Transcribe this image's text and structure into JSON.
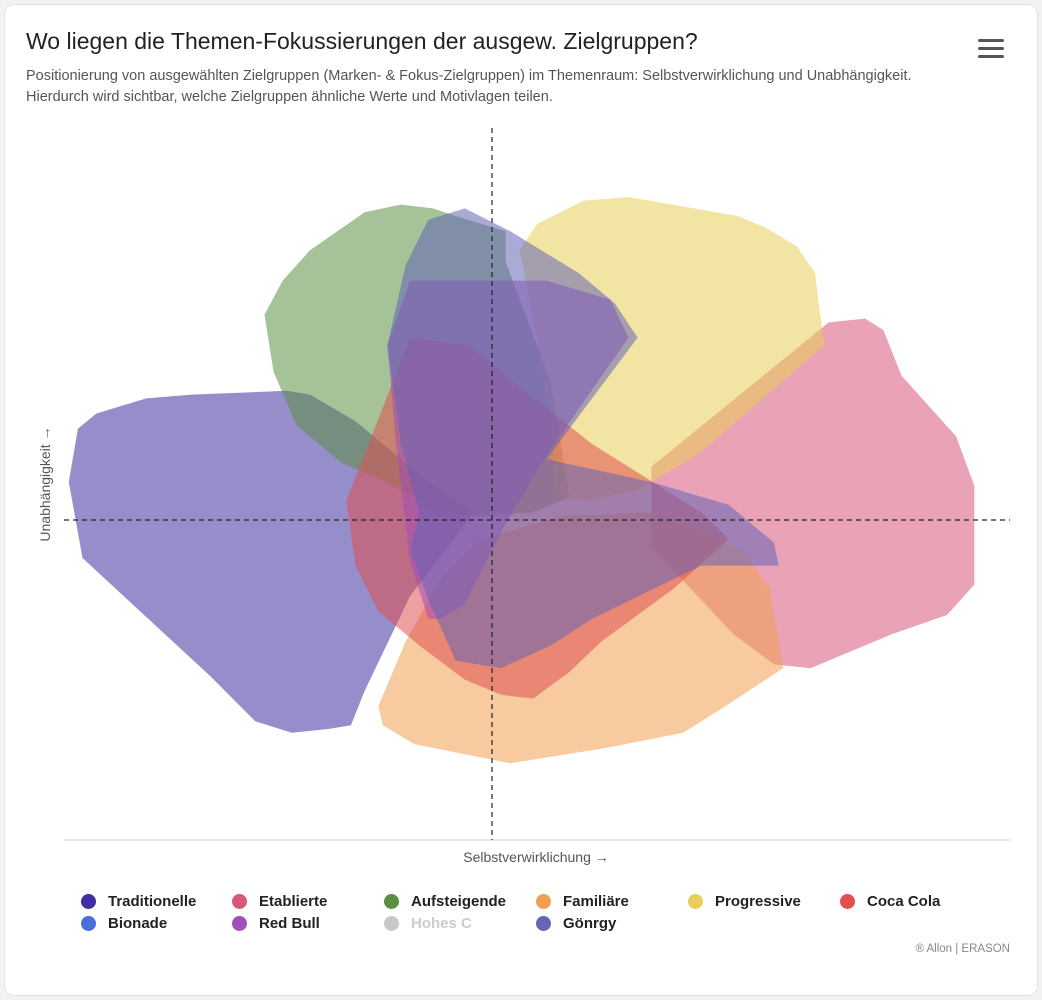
{
  "header": {
    "title": "Wo liegen die Themen-Fokussierungen der ausgew. Zielgruppen?",
    "subtitle": "Positionierung von ausgewählten Zielgruppen (Marken- & Fokus-Zielgruppen) im Themenraum: Selbstverwirklichung und Unabhängigkeit. Hierdurch wird sichtbar, welche Zielgruppen ähnliche Werte und Motivlagen teilen.",
    "menu_icon": "hamburger-menu-icon"
  },
  "credit": "® Allon | ERASON",
  "chart_data": {
    "type": "area",
    "title": "Wo liegen die Themen-Fokussierungen der ausgew. Zielgruppen?",
    "xlabel": "Selbstverwirklichung →",
    "ylabel": "Unabhängigkeit →",
    "xlim": [
      -10,
      10
    ],
    "ylim": [
      -10,
      10
    ],
    "grid": false,
    "crosshair": {
      "x": 0,
      "y": 0
    },
    "legend_position": "bottom",
    "series": [
      {
        "name": "Traditionelle",
        "color": "#3f2fa0",
        "visible": true,
        "polygon": [
          [
            -9.1,
            2.4
          ],
          [
            -8.7,
            2.8
          ],
          [
            -7.6,
            3.2
          ],
          [
            -6.6,
            3.3
          ],
          [
            -4.5,
            3.4
          ],
          [
            -4.0,
            3.3
          ],
          [
            -3.0,
            2.6
          ],
          [
            -1.5,
            1.1
          ],
          [
            -0.4,
            0.2
          ],
          [
            -1.8,
            -2.0
          ],
          [
            -2.8,
            -4.5
          ],
          [
            -3.1,
            -5.4
          ],
          [
            -3.6,
            -5.5
          ],
          [
            -4.4,
            -5.6
          ],
          [
            -5.2,
            -5.3
          ],
          [
            -6.2,
            -4.1
          ],
          [
            -9.0,
            -1.0
          ],
          [
            -9.3,
            1.0
          ]
        ]
      },
      {
        "name": "Etablierte",
        "color": "#d9587a",
        "visible": true,
        "polygon": [
          [
            3.5,
            1.4
          ],
          [
            7.4,
            5.2
          ],
          [
            8.2,
            5.3
          ],
          [
            8.6,
            5.0
          ],
          [
            9.0,
            3.8
          ],
          [
            10.2,
            2.2
          ],
          [
            10.6,
            0.9
          ],
          [
            10.6,
            -1.7
          ],
          [
            10.0,
            -2.5
          ],
          [
            8.8,
            -3.0
          ],
          [
            7.0,
            -3.9
          ],
          [
            6.2,
            -3.8
          ],
          [
            5.3,
            -3.0
          ],
          [
            3.5,
            -0.7
          ]
        ]
      },
      {
        "name": "Aufsteigende",
        "color": "#5b8f43",
        "visible": true,
        "polygon": [
          [
            -5.0,
            5.4
          ],
          [
            -4.6,
            6.3
          ],
          [
            -4.0,
            7.1
          ],
          [
            -2.8,
            8.1
          ],
          [
            -2.0,
            8.3
          ],
          [
            -1.3,
            8.2
          ],
          [
            -0.8,
            8.0
          ],
          [
            0.3,
            7.6
          ],
          [
            0.3,
            6.8
          ],
          [
            1.3,
            3.6
          ],
          [
            1.7,
            0.6
          ],
          [
            0.9,
            0.2
          ],
          [
            -0.3,
            0.1
          ],
          [
            -1.2,
            0.2
          ],
          [
            -2.3,
            1.0
          ],
          [
            -3.3,
            1.5
          ],
          [
            -4.3,
            2.5
          ],
          [
            -4.8,
            3.9
          ]
        ]
      },
      {
        "name": "Familiäre",
        "color": "#f0a050",
        "visible": true,
        "polygon": [
          [
            -2.5,
            -4.9
          ],
          [
            -2.4,
            -5.4
          ],
          [
            -1.7,
            -5.9
          ],
          [
            0.4,
            -6.4
          ],
          [
            2.5,
            -6.0
          ],
          [
            4.2,
            -5.6
          ],
          [
            5.0,
            -5.0
          ],
          [
            6.4,
            -3.9
          ],
          [
            6.1,
            -1.8
          ],
          [
            5.5,
            -0.8
          ],
          [
            4.6,
            -0.3
          ],
          [
            3.4,
            0.2
          ],
          [
            1.5,
            0.1
          ],
          [
            -0.2,
            -0.5
          ],
          [
            -1.1,
            -1.5
          ],
          [
            -1.9,
            -3.2
          ]
        ]
      },
      {
        "name": "Progressive",
        "color": "#e8cf5a",
        "visible": true,
        "polygon": [
          [
            0.6,
            7.1
          ],
          [
            1.0,
            7.8
          ],
          [
            2.0,
            8.4
          ],
          [
            3.0,
            8.5
          ],
          [
            5.4,
            8.0
          ],
          [
            6.0,
            7.7
          ],
          [
            6.7,
            7.2
          ],
          [
            7.1,
            6.5
          ],
          [
            7.3,
            4.6
          ],
          [
            4.5,
            1.7
          ],
          [
            3.2,
            0.8
          ],
          [
            2.1,
            0.5
          ],
          [
            1.4,
            0.6
          ],
          [
            1.3,
            2.7
          ],
          [
            0.7,
            6.6
          ]
        ]
      },
      {
        "name": "Coca Cola",
        "color": "#e05050",
        "visible": true,
        "polygon": [
          [
            -1.8,
            4.8
          ],
          [
            -0.5,
            4.6
          ],
          [
            0.5,
            3.6
          ],
          [
            2.2,
            2.0
          ],
          [
            4.6,
            0.2
          ],
          [
            5.2,
            -0.5
          ],
          [
            4.0,
            -1.8
          ],
          [
            2.4,
            -3.2
          ],
          [
            1.7,
            -4.0
          ],
          [
            0.9,
            -4.7
          ],
          [
            0.2,
            -4.6
          ],
          [
            -0.6,
            -4.2
          ],
          [
            -1.6,
            -3.3
          ],
          [
            -2.5,
            -2.4
          ],
          [
            -3.0,
            -1.2
          ],
          [
            -3.2,
            0.5
          ]
        ]
      },
      {
        "name": "Bionade",
        "color": "#4a6fd8",
        "visible": false,
        "polygon": [
          [
            -1.2,
            8.1
          ],
          [
            0.3,
            7.7
          ],
          [
            1.9,
            6.4
          ],
          [
            2.3,
            5.7
          ],
          [
            1.4,
            4.1
          ],
          [
            0.6,
            2.2
          ],
          [
            0.2,
            0.4
          ],
          [
            -0.8,
            0.2
          ]
        ]
      },
      {
        "name": "Red Bull",
        "color": "#a24fb8",
        "visible": true,
        "polygon": [
          [
            -1.8,
            6.3
          ],
          [
            1.2,
            6.3
          ],
          [
            2.6,
            5.8
          ],
          [
            3.0,
            4.8
          ],
          [
            2.3,
            3.6
          ],
          [
            1.2,
            1.7
          ],
          [
            0.3,
            -0.1
          ],
          [
            -0.6,
            -2.2
          ],
          [
            -1.1,
            -2.6
          ],
          [
            -1.4,
            -2.6
          ],
          [
            -1.8,
            -1.1
          ],
          [
            -2.1,
            1.9
          ],
          [
            -2.3,
            4.6
          ]
        ]
      },
      {
        "name": "Hohes C",
        "color": "#c8c8c8",
        "visible": false,
        "polygon": [
          [
            0.0,
            2.0
          ],
          [
            1.0,
            1.0
          ],
          [
            0.0,
            0.5
          ]
        ]
      },
      {
        "name": "Gönrgy",
        "color": "#6565b5",
        "visible": true,
        "polygon": [
          [
            -2.3,
            4.6
          ],
          [
            -1.9,
            6.7
          ],
          [
            -1.4,
            7.9
          ],
          [
            -0.6,
            8.2
          ],
          [
            0.4,
            7.6
          ],
          [
            1.9,
            6.5
          ],
          [
            2.7,
            5.7
          ],
          [
            3.2,
            4.8
          ],
          [
            1.2,
            1.6
          ],
          [
            3.5,
            1.0
          ],
          [
            5.2,
            0.4
          ],
          [
            6.2,
            -0.6
          ],
          [
            6.3,
            -1.2
          ],
          [
            4.6,
            -1.2
          ],
          [
            2.2,
            -2.6
          ],
          [
            1.3,
            -3.3
          ],
          [
            0.2,
            -3.9
          ],
          [
            -0.8,
            -3.7
          ],
          [
            -1.4,
            -2.1
          ],
          [
            -1.8,
            -0.8
          ],
          [
            -1.6,
            0.2
          ],
          [
            -2.0,
            2.0
          ]
        ]
      }
    ]
  }
}
